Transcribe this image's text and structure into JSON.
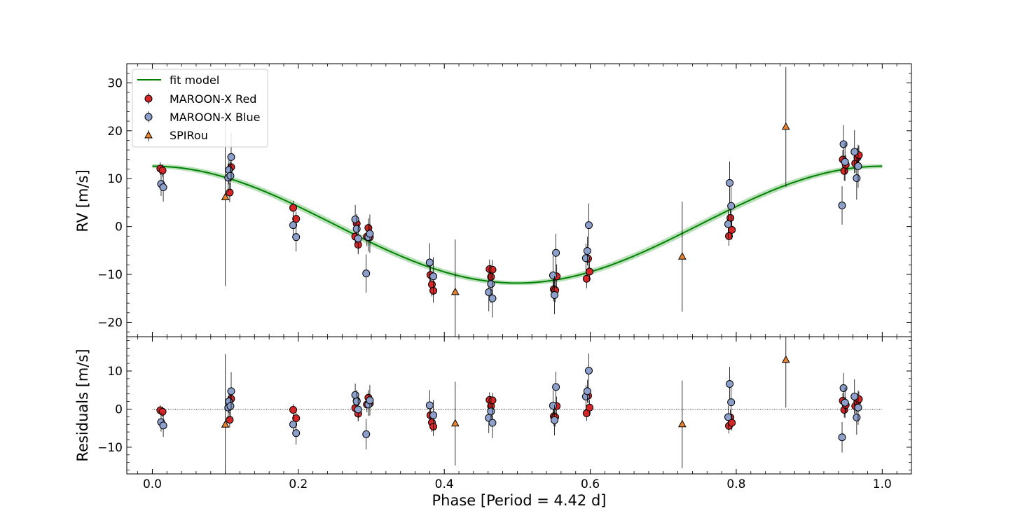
{
  "chart_data": {
    "type": "scatter",
    "model": {
      "name": "fit model",
      "amplitude": 12.2,
      "offset": 0.4,
      "phase_peak": 0.0,
      "band_halfwidth": 0.7,
      "color": "#008000",
      "band_color": "#7fc97f"
    },
    "x_axis": {
      "label": "Phase [Period = 4.42 d]",
      "lim": [
        -0.035,
        1.04
      ],
      "ticks": [
        0.0,
        0.2,
        0.4,
        0.6,
        0.8,
        1.0
      ],
      "tick_labels": [
        "0.0",
        "0.2",
        "0.4",
        "0.6",
        "0.8",
        "1.0"
      ]
    },
    "top_panel": {
      "ylabel": "RV [m/s]",
      "ylim": [
        -23,
        34
      ],
      "ticks": [
        -20,
        -10,
        0,
        10,
        20,
        30
      ],
      "tick_labels": [
        "−20",
        "−10",
        "0",
        "10",
        "20",
        "30"
      ]
    },
    "bottom_panel": {
      "ylabel": "Residuals [m/s]",
      "ylim": [
        -17,
        19
      ],
      "ticks": [
        -10,
        0,
        10
      ],
      "tick_labels": [
        "−10",
        "0",
        "10"
      ]
    },
    "legend": {
      "position": "upper-left",
      "entries": [
        "fit model",
        "MAROON-X Red",
        "MAROON-X Blue",
        "SPIRou"
      ]
    },
    "series": [
      {
        "name": "MAROON-X Red",
        "marker": "circle",
        "color": "#d62728",
        "points": [
          {
            "x": 0.011,
            "y": 12.1,
            "err": 1.3,
            "res": -0.3
          },
          {
            "x": 0.014,
            "y": 11.7,
            "err": 1.3,
            "res": -0.7
          },
          {
            "x": 0.106,
            "y": 7.1,
            "err": 2.0,
            "res": -2.8
          },
          {
            "x": 0.108,
            "y": 12.4,
            "err": 2.0,
            "res": 2.7
          },
          {
            "x": 0.193,
            "y": 3.9,
            "err": 1.5,
            "res": -0.2
          },
          {
            "x": 0.197,
            "y": 1.6,
            "err": 1.5,
            "res": -2.4
          },
          {
            "x": 0.278,
            "y": -2.1,
            "err": 2.0,
            "res": 0.3
          },
          {
            "x": 0.28,
            "y": 0.6,
            "err": 2.0,
            "res": 2.2
          },
          {
            "x": 0.282,
            "y": -3.8,
            "err": 2.0,
            "res": -1.2
          },
          {
            "x": 0.294,
            "y": -2.1,
            "err": 2.0,
            "res": 1.2
          },
          {
            "x": 0.296,
            "y": -0.3,
            "err": 2.0,
            "res": 3.0
          },
          {
            "x": 0.298,
            "y": -2.2,
            "err": 2.0,
            "res": 1.5
          },
          {
            "x": 0.381,
            "y": -10.1,
            "err": 2.5,
            "res": -1.6
          },
          {
            "x": 0.383,
            "y": -12.1,
            "err": 2.5,
            "res": -3.5
          },
          {
            "x": 0.385,
            "y": -13.4,
            "err": 2.5,
            "res": -4.6
          },
          {
            "x": 0.462,
            "y": -8.9,
            "err": 2.0,
            "res": 2.4
          },
          {
            "x": 0.464,
            "y": -10.5,
            "err": 2.0,
            "res": 0.8
          },
          {
            "x": 0.466,
            "y": -9.0,
            "err": 2.0,
            "res": 2.3
          },
          {
            "x": 0.55,
            "y": -13.1,
            "err": 2.5,
            "res": -1.9
          },
          {
            "x": 0.552,
            "y": -13.3,
            "err": 2.5,
            "res": -2.1
          },
          {
            "x": 0.554,
            "y": -10.4,
            "err": 2.5,
            "res": 0.8
          },
          {
            "x": 0.595,
            "y": -10.9,
            "err": 2.0,
            "res": -1.1
          },
          {
            "x": 0.597,
            "y": -6.7,
            "err": 2.0,
            "res": 3.5
          },
          {
            "x": 0.599,
            "y": -9.4,
            "err": 2.0,
            "res": 0.4
          },
          {
            "x": 0.79,
            "y": -2.0,
            "err": 2.0,
            "res": -4.4
          },
          {
            "x": 0.792,
            "y": 1.8,
            "err": 2.0,
            "res": -2.2
          },
          {
            "x": 0.794,
            "y": -0.7,
            "err": 2.0,
            "res": -3.6
          },
          {
            "x": 0.946,
            "y": 14.0,
            "err": 2.0,
            "res": 2.2
          },
          {
            "x": 0.948,
            "y": 11.6,
            "err": 2.0,
            "res": -0.2
          },
          {
            "x": 0.95,
            "y": 12.9,
            "err": 2.0,
            "res": 1.1
          },
          {
            "x": 0.963,
            "y": 13.2,
            "err": 2.0,
            "res": 0.8
          },
          {
            "x": 0.966,
            "y": 14.4,
            "err": 2.0,
            "res": 2.0
          },
          {
            "x": 0.968,
            "y": 14.9,
            "err": 2.0,
            "res": 2.6
          }
        ]
      },
      {
        "name": "MAROON-X Blue",
        "marker": "circle",
        "color": "#8da0cb",
        "points": [
          {
            "x": 0.012,
            "y": 8.9,
            "err": 2.5,
            "res": -3.4
          },
          {
            "x": 0.015,
            "y": 8.2,
            "err": 3.0,
            "res": -4.3
          },
          {
            "x": 0.104,
            "y": 10.2,
            "err": 3.0,
            "res": 0.4
          },
          {
            "x": 0.105,
            "y": 11.8,
            "err": 3.0,
            "res": 2.0
          },
          {
            "x": 0.107,
            "y": 10.6,
            "err": 3.0,
            "res": 0.8
          },
          {
            "x": 0.108,
            "y": 14.5,
            "err": 5.0,
            "res": 4.7
          },
          {
            "x": 0.193,
            "y": 0.3,
            "err": 2.5,
            "res": -4.0
          },
          {
            "x": 0.197,
            "y": -2.2,
            "err": 3.0,
            "res": -6.3
          },
          {
            "x": 0.278,
            "y": 1.5,
            "err": 3.0,
            "res": 3.7
          },
          {
            "x": 0.28,
            "y": -0.5,
            "err": 3.0,
            "res": 2.0
          },
          {
            "x": 0.282,
            "y": -2.5,
            "err": 3.0,
            "res": -0.1
          },
          {
            "x": 0.293,
            "y": -9.8,
            "err": 4.0,
            "res": -6.6
          },
          {
            "x": 0.296,
            "y": -2.2,
            "err": 3.0,
            "res": 1.2
          },
          {
            "x": 0.298,
            "y": -1.5,
            "err": 4.0,
            "res": 2.3
          },
          {
            "x": 0.38,
            "y": -7.5,
            "err": 4.0,
            "res": 1.0
          },
          {
            "x": 0.385,
            "y": -10.4,
            "err": 4.0,
            "res": -1.6
          },
          {
            "x": 0.461,
            "y": -13.7,
            "err": 4.0,
            "res": -2.3
          },
          {
            "x": 0.464,
            "y": -12.0,
            "err": 4.0,
            "res": -0.6
          },
          {
            "x": 0.466,
            "y": -15.0,
            "err": 4.0,
            "res": -3.6
          },
          {
            "x": 0.549,
            "y": -10.2,
            "err": 4.0,
            "res": 0.9
          },
          {
            "x": 0.551,
            "y": -14.3,
            "err": 4.0,
            "res": -2.9
          },
          {
            "x": 0.553,
            "y": -5.5,
            "err": 4.0,
            "res": 5.8
          },
          {
            "x": 0.594,
            "y": -6.6,
            "err": 3.0,
            "res": 3.3
          },
          {
            "x": 0.596,
            "y": -5.1,
            "err": 3.0,
            "res": 4.7
          },
          {
            "x": 0.598,
            "y": 0.3,
            "err": 4.5,
            "res": 10.1
          },
          {
            "x": 0.789,
            "y": 0.5,
            "err": 3.0,
            "res": -2.1
          },
          {
            "x": 0.791,
            "y": 9.1,
            "err": 4.5,
            "res": 6.6
          },
          {
            "x": 0.793,
            "y": 4.3,
            "err": 4.0,
            "res": 1.8
          },
          {
            "x": 0.945,
            "y": 4.4,
            "err": 4.0,
            "res": -7.4
          },
          {
            "x": 0.947,
            "y": 17.2,
            "err": 4.0,
            "res": 5.5
          },
          {
            "x": 0.949,
            "y": 13.5,
            "err": 4.0,
            "res": 1.7
          },
          {
            "x": 0.962,
            "y": 15.6,
            "err": 4.5,
            "res": 3.3
          },
          {
            "x": 0.965,
            "y": 10.1,
            "err": 4.5,
            "res": -2.2
          },
          {
            "x": 0.967,
            "y": 12.6,
            "err": 4.5,
            "res": 0.4
          }
        ]
      },
      {
        "name": "SPIRou",
        "marker": "triangle",
        "color": "#e8822c",
        "points": [
          {
            "x": 0.1,
            "y": 6.1,
            "err": 18.5,
            "res": -4.1
          },
          {
            "x": 0.415,
            "y": -13.7,
            "err": 11.0,
            "res": -3.8
          },
          {
            "x": 0.726,
            "y": -6.3,
            "err": 11.5,
            "res": -4.0
          },
          {
            "x": 0.868,
            "y": 20.8,
            "err": 12.5,
            "res": 12.9
          }
        ]
      }
    ]
  }
}
